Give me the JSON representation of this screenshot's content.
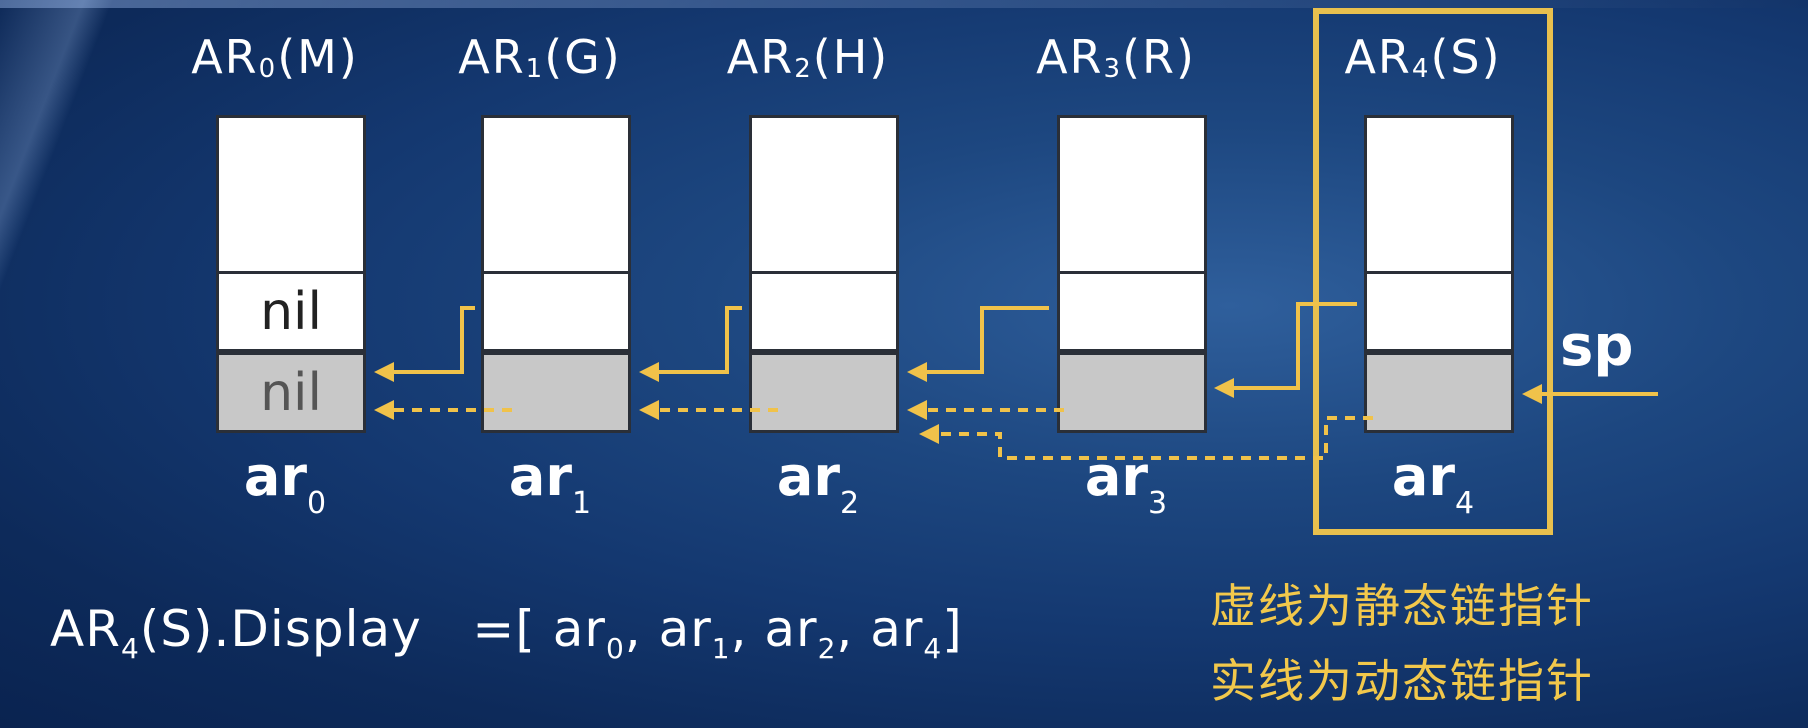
{
  "records": [
    {
      "label_main": "AR",
      "label_sub": "0",
      "label_proc": "(M)",
      "name_main": "ar",
      "name_sub": "0",
      "mid_text": "nil",
      "bot_text": "nil"
    },
    {
      "label_main": "AR",
      "label_sub": "1",
      "label_proc": "(G)",
      "name_main": "ar",
      "name_sub": "1",
      "mid_text": "",
      "bot_text": ""
    },
    {
      "label_main": "AR",
      "label_sub": "2",
      "label_proc": "(H)",
      "name_main": "ar",
      "name_sub": "2",
      "mid_text": "",
      "bot_text": ""
    },
    {
      "label_main": "AR",
      "label_sub": "3",
      "label_proc": "(R)",
      "name_main": "ar",
      "name_sub": "3",
      "mid_text": "",
      "bot_text": ""
    },
    {
      "label_main": "AR",
      "label_sub": "4",
      "label_proc": "(S)",
      "name_main": "ar",
      "name_sub": "4",
      "mid_text": "",
      "bot_text": ""
    }
  ],
  "sp_label": "sp",
  "display": {
    "prefix_main": "AR",
    "prefix_sub": "4",
    "prefix_rest": "(S).Display",
    "equals": "=[",
    "items": [
      {
        "main": "ar",
        "sub": "0"
      },
      {
        "main": "ar",
        "sub": "1"
      },
      {
        "main": "ar",
        "sub": "2"
      },
      {
        "main": "ar",
        "sub": "4"
      }
    ],
    "close": "]"
  },
  "notes": {
    "dashed": "虚线为静态链指针",
    "solid": "实线为动态链指针"
  },
  "colors": {
    "accent": "#e8c04e",
    "note_text": "#f2c84b"
  }
}
